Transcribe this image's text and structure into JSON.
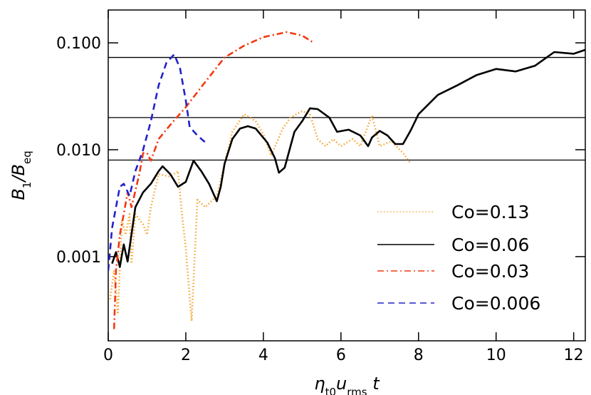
{
  "chart_data": {
    "type": "line",
    "xlabel": [
      "η",
      "t0",
      "u",
      "rms",
      " t"
    ],
    "ylabel": [
      "B",
      "1",
      "/B",
      "eq"
    ],
    "log_y": true,
    "xlim": [
      0,
      12.3
    ],
    "ylim": [
      0.000163,
      0.203
    ],
    "xticks": [
      0,
      2,
      4,
      6,
      8,
      10,
      12
    ],
    "yticks": [
      0.001,
      {
        "value": 0.01,
        "label": "0.010"
      },
      {
        "value": 0.1,
        "label": "0.100"
      }
    ],
    "hlines": [
      0.073,
      0.02,
      0.008
    ],
    "legend": "lower right",
    "series": [
      {
        "name": "Co=0.13",
        "color": "#f5a631",
        "linestyle": "dotted",
        "x": [
          0.05,
          0.15,
          0.25,
          0.35,
          0.45,
          0.55,
          0.6,
          0.7,
          0.9,
          1.0,
          1.1,
          1.3,
          1.6,
          1.8,
          1.9,
          2.0,
          2.15,
          2.3,
          2.5,
          2.8,
          3.0,
          3.2,
          3.5,
          3.8,
          4.0,
          4.2,
          4.5,
          4.7,
          5.0,
          5.2,
          5.4,
          5.6,
          5.8,
          6.0,
          6.3,
          6.5,
          6.8,
          7.0,
          7.3,
          7.6,
          7.8
        ],
        "values": [
          0.0004,
          0.00074,
          0.00029,
          0.0022,
          0.0016,
          0.0025,
          0.00086,
          0.0025,
          0.002,
          0.0016,
          0.0029,
          0.0059,
          0.0056,
          0.0063,
          0.0025,
          0.0012,
          0.00025,
          0.0034,
          0.0029,
          0.0037,
          0.0074,
          0.0147,
          0.0215,
          0.0185,
          0.014,
          0.0088,
          0.0158,
          0.02,
          0.023,
          0.0215,
          0.0126,
          0.0108,
          0.0126,
          0.0108,
          0.0126,
          0.0108,
          0.021,
          0.0108,
          0.012,
          0.0093,
          0.0074
        ]
      },
      {
        "name": "Co=0.06",
        "color": "#000000",
        "linestyle": "solid",
        "x": [
          0.1,
          0.2,
          0.3,
          0.4,
          0.5,
          0.7,
          0.9,
          1.1,
          1.3,
          1.4,
          1.6,
          1.8,
          2.0,
          2.2,
          2.4,
          2.6,
          2.8,
          2.9,
          3.0,
          3.2,
          3.4,
          3.6,
          3.8,
          4.1,
          4.3,
          4.4,
          4.55,
          4.8,
          5.0,
          5.2,
          5.4,
          5.7,
          5.9,
          6.2,
          6.5,
          6.7,
          6.8,
          7.0,
          7.2,
          7.4,
          7.6,
          7.8,
          8.0,
          8.5,
          9.0,
          9.5,
          10.0,
          10.5,
          11.0,
          11.5,
          12.0,
          12.3
        ],
        "values": [
          0.00086,
          0.0011,
          0.0008,
          0.0013,
          0.0009,
          0.0029,
          0.004,
          0.0048,
          0.0063,
          0.007,
          0.0059,
          0.0045,
          0.005,
          0.0079,
          0.0063,
          0.0048,
          0.0033,
          0.0045,
          0.0074,
          0.0126,
          0.0158,
          0.0166,
          0.0158,
          0.0117,
          0.0083,
          0.0061,
          0.0068,
          0.0147,
          0.0185,
          0.0244,
          0.024,
          0.02,
          0.0147,
          0.0154,
          0.0136,
          0.0108,
          0.013,
          0.015,
          0.0136,
          0.0113,
          0.0113,
          0.0152,
          0.0215,
          0.0326,
          0.04,
          0.05,
          0.057,
          0.054,
          0.061,
          0.082,
          0.079,
          0.086
        ]
      },
      {
        "name": "Co=0.03",
        "color": "#f23a12",
        "linestyle": "dashdot",
        "x": [
          0.15,
          0.2,
          0.3,
          0.4,
          0.5,
          0.6,
          0.8,
          0.9,
          1.0,
          1.1,
          1.3,
          1.6,
          2.0,
          2.5,
          3.0,
          3.5,
          4.0,
          4.6,
          5.0,
          5.3
        ],
        "values": [
          0.00021,
          0.00074,
          0.0016,
          0.0025,
          0.004,
          0.0029,
          0.0059,
          0.0093,
          0.0093,
          0.0079,
          0.0126,
          0.0171,
          0.025,
          0.043,
          0.073,
          0.094,
          0.113,
          0.126,
          0.117,
          0.1
        ]
      },
      {
        "name": "Co=0.006",
        "color": "#2222cc",
        "linestyle": "dashed",
        "x": [
          0.0,
          0.1,
          0.2,
          0.3,
          0.4,
          0.55,
          0.7,
          0.9,
          1.1,
          1.3,
          1.5,
          1.7,
          1.85,
          2.0,
          2.1,
          2.3,
          2.55
        ],
        "values": [
          0.00074,
          0.00185,
          0.0029,
          0.0045,
          0.0048,
          0.0037,
          0.0063,
          0.01,
          0.0185,
          0.04,
          0.065,
          0.078,
          0.058,
          0.029,
          0.0163,
          0.0136,
          0.0113
        ]
      }
    ]
  }
}
